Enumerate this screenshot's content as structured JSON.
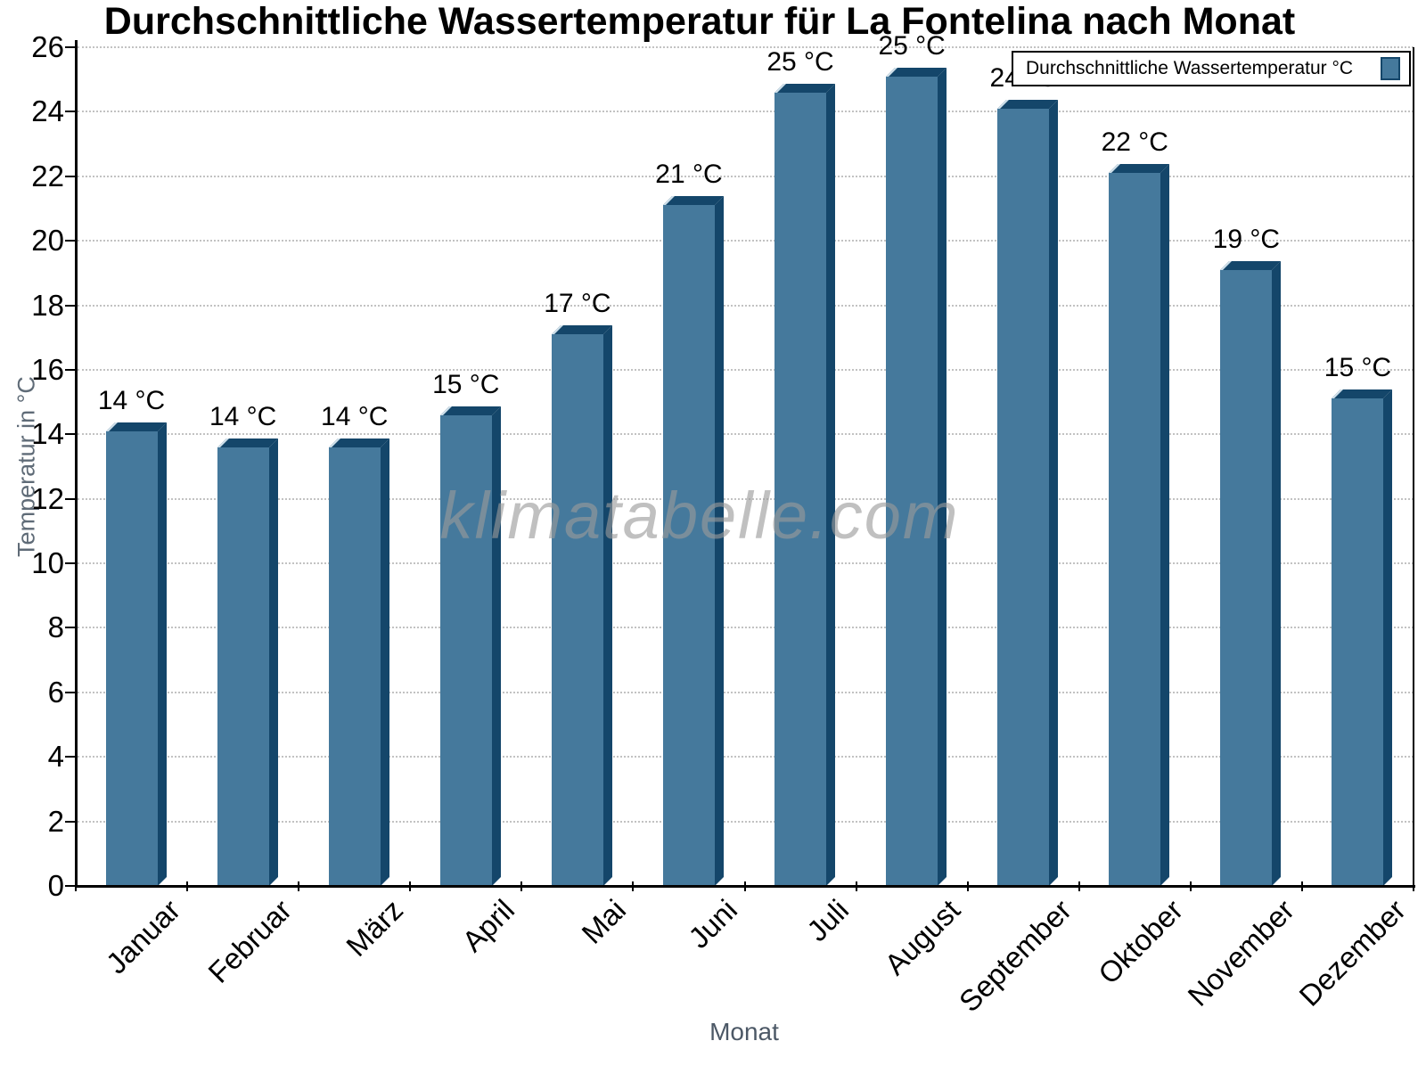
{
  "watermark": "klimatabelle.com",
  "chart_data": {
    "type": "bar",
    "title": "Durchschnittliche Wassertemperatur für La Fontelina nach Monat",
    "xlabel": "Monat",
    "ylabel": "Temperatur in °C",
    "categories": [
      "Januar",
      "Februar",
      "März",
      "April",
      "Mai",
      "Juni",
      "Juli",
      "August",
      "September",
      "Oktober",
      "November",
      "Dezember"
    ],
    "values": [
      14.1,
      13.6,
      13.6,
      14.6,
      17.1,
      21.1,
      24.6,
      25.1,
      24.1,
      22.1,
      19.1,
      15.1
    ],
    "bar_labels": [
      "14 °C",
      "14 °C",
      "14 °C",
      "15 °C",
      "17 °C",
      "21 °C",
      "25 °C",
      "25 °C",
      "24 °C",
      "22 °C",
      "19 °C",
      "15 °C"
    ],
    "ylim": [
      0,
      26
    ],
    "yticks": [
      0,
      2,
      4,
      6,
      8,
      10,
      12,
      14,
      16,
      18,
      20,
      22,
      24,
      26
    ],
    "grid": "horizontal-dotted",
    "legend": {
      "label": "Durchschnittliche Wassertemperatur °C",
      "position": "top-right"
    },
    "colors": {
      "bar_face": "#45799C",
      "bar_dark": "#14466A",
      "bar_highlight": "#cfe0ea",
      "grid": "#c2c2c2",
      "axis": "#000000",
      "axis_title": "#5f6b77",
      "watermark": "#9b9b9b",
      "legend_border": "#000000"
    }
  }
}
